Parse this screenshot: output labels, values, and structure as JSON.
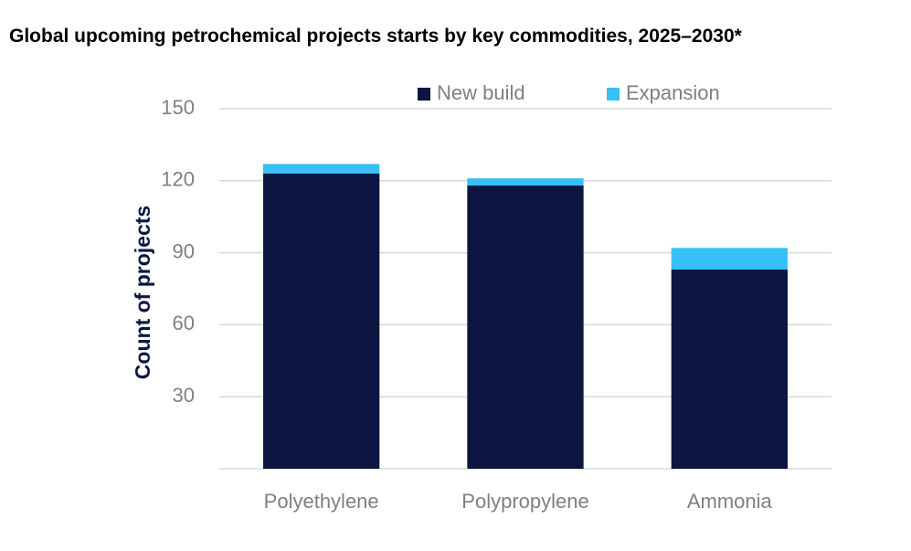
{
  "chart_data": {
    "type": "bar",
    "stacked": true,
    "title": "Global upcoming petrochemical projects starts by key commodities, 2025–2030*",
    "xlabel": "",
    "ylabel": "Count of projects",
    "categories": [
      "Polyethylene",
      "Polypropylene",
      "Ammonia"
    ],
    "series": [
      {
        "name": "New build",
        "color": "#0c1640",
        "values": [
          123,
          118,
          83
        ]
      },
      {
        "name": "Expansion",
        "color": "#36c0f7",
        "values": [
          4,
          3,
          9
        ]
      }
    ],
    "ylim": [
      0,
      150
    ],
    "yticks": [
      30,
      60,
      90,
      120,
      150
    ],
    "grid": true,
    "legend_position": "top-right"
  }
}
